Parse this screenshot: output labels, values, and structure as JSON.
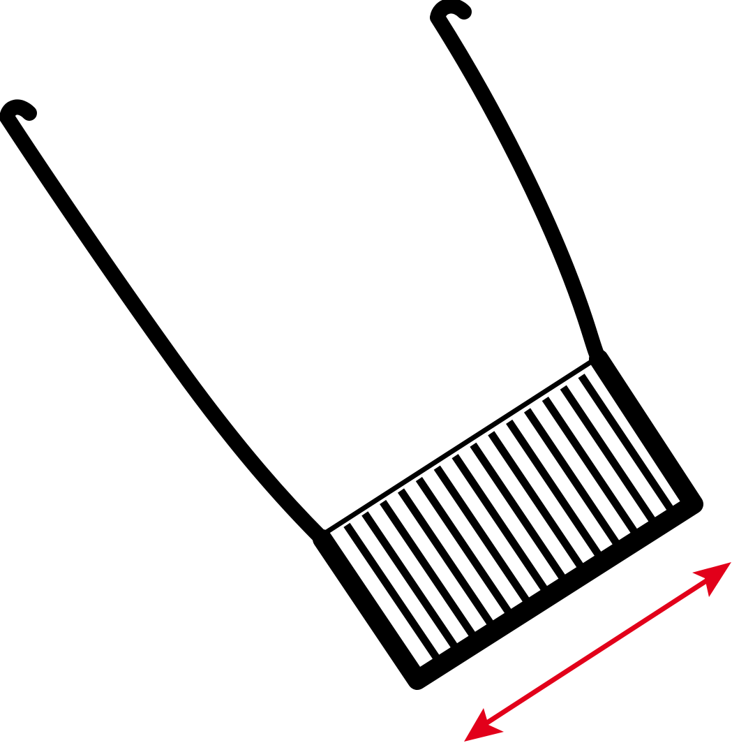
{
  "diagram": {
    "outline_color": "#000000",
    "hatch_color": "#000000",
    "background_color": "#ffffff",
    "arrow_color": "#e2001a",
    "hatch_stripe_count": 14,
    "arrow_style": "double-headed"
  }
}
